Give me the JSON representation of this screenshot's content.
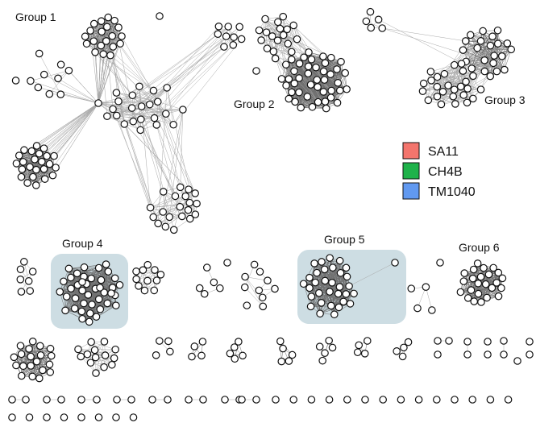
{
  "groups": [
    {
      "id": "g1",
      "label": "Group 1",
      "highlighted": false
    },
    {
      "id": "g2",
      "label": "Group 2",
      "highlighted": false
    },
    {
      "id": "g3",
      "label": "Group 3",
      "highlighted": false
    },
    {
      "id": "g4",
      "label": "Group 4",
      "highlighted": true
    },
    {
      "id": "g5",
      "label": "Group 5",
      "highlighted": true
    },
    {
      "id": "g6",
      "label": "Group 6",
      "highlighted": false
    }
  ],
  "legend": [
    {
      "label": "SA11",
      "color": "#f4756d"
    },
    {
      "label": "CH4B",
      "color": "#1fb24a"
    },
    {
      "label": "TM1040",
      "color": "#6199f0"
    }
  ],
  "colors": {
    "node_fill": "#ffffff",
    "node_stroke": "#111111",
    "edge": "#a8a8a8",
    "highlight_box": "#cddde3",
    "group5_marked_node": "#555555"
  }
}
